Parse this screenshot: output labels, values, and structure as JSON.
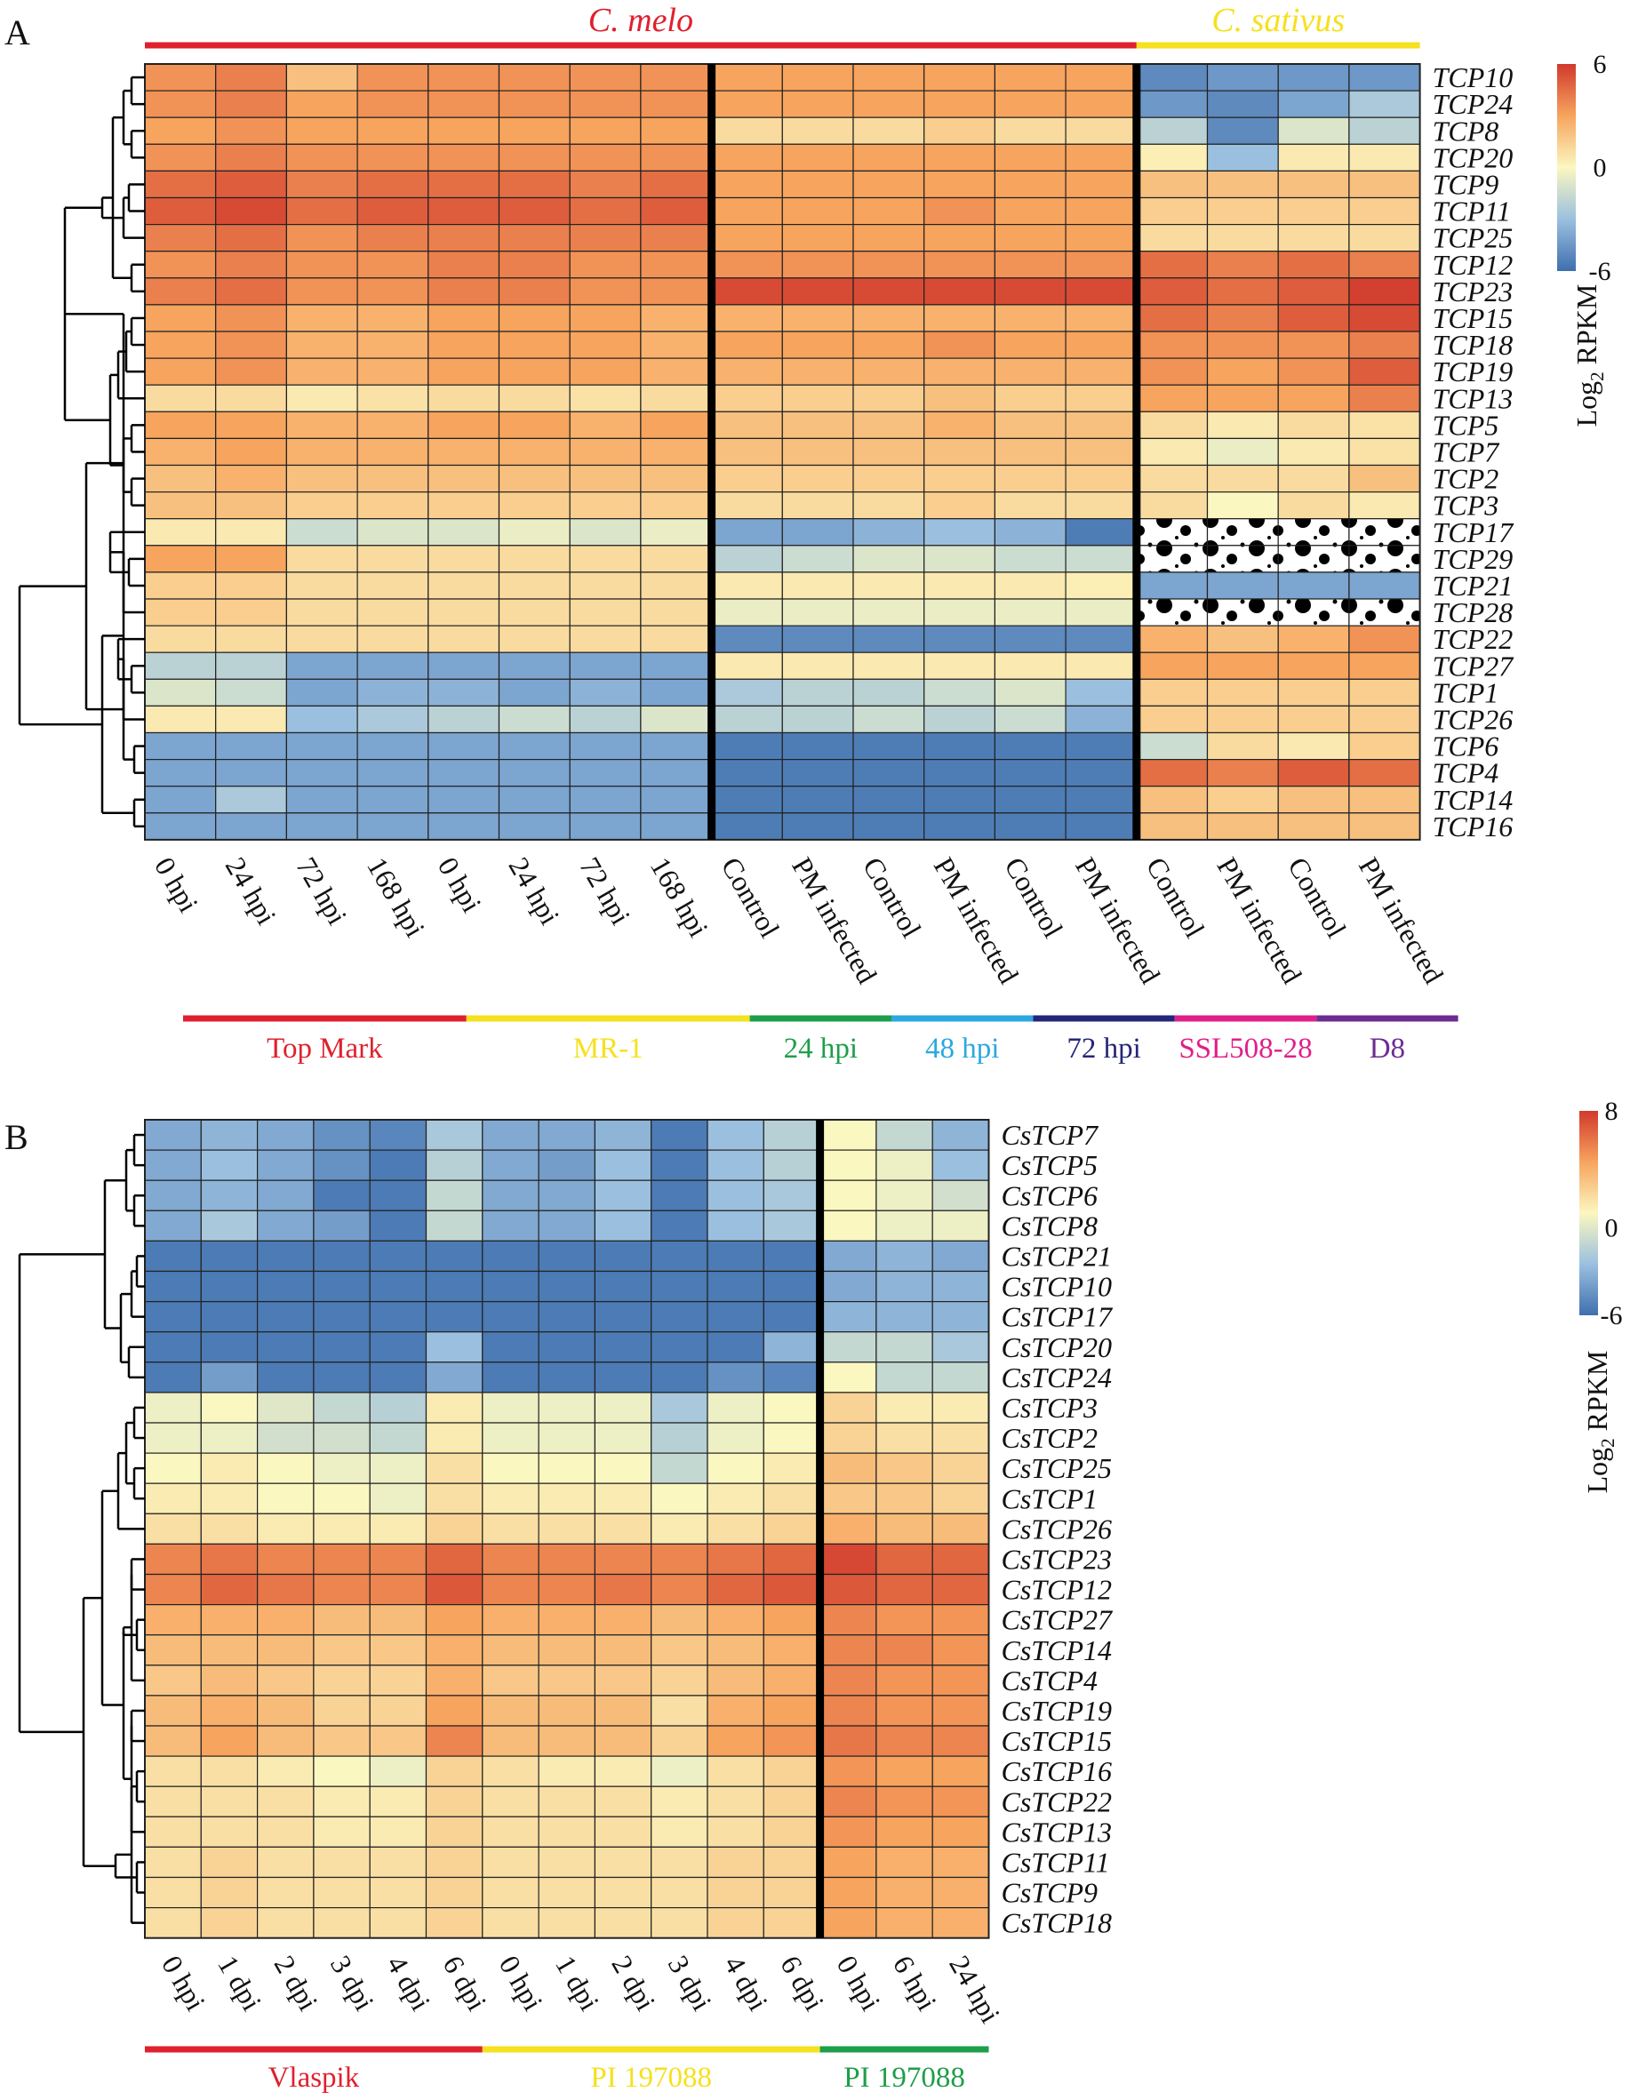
{
  "chart_data": [
    {
      "panel": "A",
      "type": "heatmap",
      "colorbar": {
        "title": "Log2 RPKM",
        "title_main": "Log",
        "title_sub": "2",
        "title_rest": " RPKM",
        "ticks": [
          "6",
          "0",
          "-6"
        ],
        "range": [
          -6,
          6
        ]
      },
      "species_labels": [
        {
          "text": "C. melo",
          "color": "#e0202e",
          "columns": [
            0,
            13
          ]
        },
        {
          "text": "C. sativus",
          "color": "#f5e11e",
          "columns": [
            14,
            17
          ]
        }
      ],
      "column_labels": [
        "0 hpi",
        "24 hpi",
        "72 hpi",
        "168 hpi",
        "0 hpi",
        "24 hpi",
        "72 hpi",
        "168 hpi",
        "Control",
        "PM infected",
        "Control",
        "PM infected",
        "Control",
        "PM infected",
        "Control",
        "PM infected",
        "Control",
        "PM infected"
      ],
      "column_groups": [
        {
          "label": "Top Mark",
          "color": "#e0202e",
          "columns": [
            0,
            3
          ]
        },
        {
          "label": "MR-1",
          "color": "#f5e11e",
          "columns": [
            4,
            7
          ]
        },
        {
          "label": "24 hpi",
          "color": "#1e9e4a",
          "columns": [
            8,
            9
          ]
        },
        {
          "label": "48 hpi",
          "color": "#2aa8e0",
          "columns": [
            10,
            11
          ]
        },
        {
          "label": "72 hpi",
          "color": "#24257a",
          "columns": [
            12,
            13
          ]
        },
        {
          "label": "SSL508-28",
          "color": "#e0208a",
          "columns": [
            14,
            15
          ]
        },
        {
          "label": "D8",
          "color": "#6c2c91",
          "columns": [
            16,
            17
          ]
        }
      ],
      "separators_after_column": [
        7,
        13
      ],
      "rows": [
        "TCP10",
        "TCP24",
        "TCP8",
        "TCP20",
        "TCP9",
        "TCP11",
        "TCP25",
        "TCP12",
        "TCP23",
        "TCP15",
        "TCP18",
        "TCP19",
        "TCP13",
        "TCP5",
        "TCP7",
        "TCP2",
        "TCP3",
        "TCP17",
        "TCP29",
        "TCP21",
        "TCP28",
        "TCP22",
        "TCP27",
        "TCP1",
        "TCP26",
        "TCP6",
        "TCP4",
        "TCP14",
        "TCP16"
      ],
      "values": [
        [
          3.5,
          4.0,
          2.0,
          3.5,
          3.5,
          3.5,
          3.5,
          3.5,
          3.0,
          3.0,
          3.0,
          3.0,
          3.0,
          3.0,
          -5.0,
          -4.5,
          -4.5,
          -4.5
        ],
        [
          3.5,
          4.0,
          3.0,
          3.5,
          3.5,
          3.5,
          3.5,
          3.5,
          3.0,
          3.0,
          3.0,
          3.0,
          3.0,
          3.0,
          -4.5,
          -5.0,
          -4.0,
          -2.5
        ],
        [
          3.0,
          3.5,
          3.0,
          3.0,
          3.0,
          3.0,
          3.0,
          3.0,
          1.0,
          1.0,
          1.0,
          1.5,
          1.0,
          1.0,
          -2.0,
          -5.0,
          -1.0,
          -2.0
        ],
        [
          3.5,
          4.0,
          3.5,
          3.5,
          3.5,
          3.5,
          3.5,
          3.5,
          3.0,
          3.0,
          3.0,
          3.0,
          3.0,
          3.0,
          0.3,
          -3.0,
          0.5,
          0.5
        ],
        [
          4.5,
          5.0,
          4.0,
          4.5,
          4.5,
          4.5,
          4.0,
          4.5,
          3.0,
          3.0,
          3.0,
          3.0,
          3.0,
          3.0,
          2.0,
          2.0,
          2.0,
          2.0
        ],
        [
          5.0,
          5.5,
          4.5,
          5.0,
          5.0,
          5.0,
          4.5,
          5.0,
          3.0,
          3.0,
          3.0,
          3.5,
          3.0,
          3.0,
          1.5,
          1.5,
          1.5,
          1.5
        ],
        [
          4.0,
          4.5,
          3.5,
          4.0,
          4.0,
          4.0,
          4.0,
          4.0,
          3.0,
          3.0,
          3.0,
          3.0,
          3.0,
          3.0,
          1.0,
          1.0,
          1.0,
          1.0
        ],
        [
          3.5,
          4.0,
          3.5,
          3.5,
          4.0,
          4.0,
          3.5,
          3.5,
          3.5,
          3.5,
          3.5,
          3.5,
          3.5,
          3.5,
          4.5,
          4.0,
          4.5,
          4.0
        ],
        [
          4.0,
          4.5,
          3.5,
          3.5,
          4.0,
          4.0,
          3.5,
          3.5,
          5.5,
          5.5,
          5.5,
          5.5,
          5.5,
          5.5,
          5.0,
          4.5,
          5.0,
          5.8
        ],
        [
          3.0,
          3.5,
          2.5,
          2.5,
          3.0,
          3.0,
          3.0,
          2.5,
          2.5,
          2.5,
          2.5,
          2.5,
          2.5,
          2.5,
          4.5,
          4.0,
          5.0,
          5.5
        ],
        [
          3.0,
          3.5,
          2.5,
          2.5,
          3.0,
          3.0,
          3.0,
          2.5,
          3.0,
          3.0,
          3.0,
          3.5,
          3.0,
          3.0,
          3.5,
          3.5,
          3.5,
          4.0
        ],
        [
          3.0,
          3.5,
          2.5,
          2.5,
          3.0,
          3.0,
          3.0,
          2.5,
          2.5,
          2.5,
          2.5,
          2.5,
          2.5,
          2.5,
          3.5,
          3.0,
          3.5,
          5.0
        ],
        [
          1.0,
          1.0,
          0.5,
          0.8,
          1.0,
          1.0,
          0.8,
          1.0,
          1.5,
          1.5,
          1.5,
          2.0,
          1.5,
          1.5,
          3.0,
          3.0,
          3.0,
          4.0
        ],
        [
          3.0,
          3.0,
          2.5,
          2.5,
          3.0,
          3.0,
          2.5,
          3.0,
          2.0,
          2.0,
          2.0,
          2.5,
          2.0,
          2.0,
          1.0,
          0.5,
          1.0,
          0.8
        ],
        [
          2.5,
          3.0,
          2.5,
          2.5,
          2.5,
          2.5,
          2.5,
          2.5,
          2.0,
          2.0,
          2.0,
          2.0,
          2.0,
          2.0,
          0.5,
          -0.5,
          0.5,
          0.8
        ],
        [
          2.0,
          2.5,
          2.0,
          2.0,
          2.0,
          2.0,
          2.0,
          2.0,
          1.5,
          1.5,
          1.5,
          1.5,
          1.5,
          1.5,
          1.0,
          1.0,
          1.0,
          2.0
        ],
        [
          2.0,
          2.0,
          1.5,
          1.5,
          1.5,
          1.5,
          1.5,
          1.5,
          1.0,
          1.0,
          1.0,
          1.5,
          1.0,
          1.0,
          1.0,
          0.0,
          1.0,
          0.5
        ],
        [
          0.5,
          0.5,
          -1.5,
          -1.0,
          -1.0,
          -0.5,
          -1.0,
          -0.5,
          -4.0,
          -4.0,
          -3.5,
          -3.0,
          -3.5,
          -5.5,
          null,
          null,
          null,
          null
        ],
        [
          3.0,
          3.0,
          1.0,
          1.0,
          1.0,
          1.0,
          1.0,
          1.0,
          -2.0,
          -1.5,
          -1.0,
          -1.0,
          -1.5,
          -1.5,
          null,
          null,
          null,
          null
        ],
        [
          1.5,
          1.5,
          1.0,
          1.0,
          1.0,
          1.0,
          1.0,
          1.0,
          0.5,
          0.5,
          0.5,
          0.5,
          0.5,
          0.3,
          -4.0,
          -4.0,
          -4.0,
          -4.0
        ],
        [
          1.5,
          1.5,
          1.0,
          1.0,
          1.0,
          1.0,
          1.0,
          1.0,
          -0.5,
          -0.5,
          -0.5,
          -0.5,
          -0.5,
          -0.5,
          null,
          null,
          null,
          null
        ],
        [
          1.0,
          1.0,
          1.0,
          1.0,
          1.0,
          1.0,
          1.0,
          1.0,
          -5.0,
          -5.0,
          -5.0,
          -5.0,
          -5.0,
          -5.0,
          2.5,
          2.0,
          2.5,
          3.5
        ],
        [
          -2.0,
          -2.0,
          -4.0,
          -4.0,
          -4.0,
          -4.0,
          -4.0,
          -4.0,
          0.5,
          0.5,
          0.5,
          0.5,
          0.5,
          0.5,
          3.0,
          3.0,
          3.0,
          3.0
        ],
        [
          -1.0,
          -1.5,
          -4.0,
          -3.5,
          -3.5,
          -4.0,
          -3.5,
          -4.0,
          -2.5,
          -2.0,
          -2.0,
          -1.5,
          -1.0,
          -3.0,
          1.5,
          1.5,
          1.5,
          1.5
        ],
        [
          0.5,
          0.5,
          -3.0,
          -2.5,
          -2.0,
          -1.5,
          -2.0,
          -1.0,
          -2.0,
          -2.0,
          -1.5,
          -2.0,
          -1.5,
          -3.5,
          1.5,
          1.5,
          1.5,
          1.5
        ],
        [
          -4.0,
          -4.0,
          -4.0,
          -4.0,
          -4.0,
          -4.0,
          -4.0,
          -4.0,
          -5.5,
          -5.5,
          -5.5,
          -5.5,
          -5.5,
          -5.5,
          -1.5,
          1.0,
          0.5,
          1.5
        ],
        [
          -4.0,
          -4.0,
          -4.0,
          -4.0,
          -4.0,
          -4.0,
          -4.0,
          -4.0,
          -5.5,
          -5.5,
          -5.5,
          -5.5,
          -5.5,
          -5.5,
          4.5,
          4.0,
          5.0,
          4.5
        ],
        [
          -4.0,
          -2.5,
          -4.0,
          -4.0,
          -4.0,
          -4.0,
          -4.0,
          -4.0,
          -5.5,
          -5.5,
          -5.5,
          -5.5,
          -5.5,
          -5.5,
          2.0,
          1.5,
          2.0,
          2.0
        ],
        [
          -4.0,
          -4.0,
          -4.0,
          -4.0,
          -4.0,
          -4.0,
          -4.0,
          -4.0,
          -5.5,
          -5.5,
          -5.5,
          -5.5,
          -5.5,
          -5.5,
          2.0,
          2.0,
          2.0,
          2.0
        ]
      ]
    },
    {
      "panel": "B",
      "type": "heatmap",
      "colorbar": {
        "title": "Log2 RPKM",
        "title_main": "Log",
        "title_sub": "2",
        "title_rest": " RPKM",
        "ticks": [
          "8",
          "0",
          "-6"
        ],
        "range": [
          -6,
          8
        ]
      },
      "column_labels": [
        "0 hpi",
        "1 dpi",
        "2 dpi",
        "3 dpi",
        "4 dpi",
        "6 dpi",
        "0 hpi",
        "1 dpi",
        "2 dpi",
        "3 dpi",
        "4 dpi",
        "6 dpi",
        "0 hpi",
        "6 hpi",
        "24 hpi"
      ],
      "column_groups": [
        {
          "label": "Vlaspik",
          "color": "#e0202e",
          "columns": [
            0,
            5
          ]
        },
        {
          "label": "PI 197088",
          "color": "#f5e11e",
          "columns": [
            6,
            11
          ]
        },
        {
          "label": "PI 197088",
          "color": "#1e9e4a",
          "columns": [
            12,
            14
          ]
        }
      ],
      "separators_after_column": [
        11
      ],
      "rows": [
        "CsTCP7",
        "CsTCP5",
        "CsTCP6",
        "CsTCP8",
        "CsTCP21",
        "CsTCP10",
        "CsTCP17",
        "CsTCP20",
        "CsTCP24",
        "CsTCP3",
        "CsTCP2",
        "CsTCP25",
        "CsTCP1",
        "CsTCP26",
        "CsTCP23",
        "CsTCP12",
        "CsTCP27",
        "CsTCP14",
        "CsTCP4",
        "CsTCP19",
        "CsTCP15",
        "CsTCP16",
        "CsTCP22",
        "CsTCP13",
        "CsTCP11",
        "CsTCP9",
        "CsTCP18"
      ],
      "values": [
        [
          -3.5,
          -3.0,
          -3.5,
          -4.5,
          -5.0,
          -2.0,
          -3.5,
          -3.5,
          -3.0,
          -5.5,
          -2.5,
          -1.5,
          1.0,
          -1.0,
          -3.0
        ],
        [
          -3.5,
          -2.5,
          -3.5,
          -4.5,
          -5.5,
          -1.5,
          -3.5,
          -4.0,
          -2.5,
          -5.5,
          -2.5,
          -1.5,
          1.0,
          0.5,
          -2.5
        ],
        [
          -3.5,
          -3.0,
          -3.5,
          -5.5,
          -5.5,
          -1.0,
          -3.5,
          -3.5,
          -2.5,
          -5.5,
          -2.5,
          -2.0,
          1.0,
          0.5,
          -0.5
        ],
        [
          -3.5,
          -2.0,
          -3.5,
          -4.0,
          -5.5,
          -1.0,
          -3.5,
          -3.5,
          -2.5,
          -5.5,
          -2.5,
          -2.0,
          1.0,
          0.5,
          0.5
        ],
        [
          -5.5,
          -5.5,
          -5.5,
          -5.5,
          -5.5,
          -5.5,
          -5.5,
          -5.5,
          -5.5,
          -5.5,
          -5.5,
          -5.5,
          -3.5,
          -3.0,
          -3.5
        ],
        [
          -5.5,
          -5.5,
          -5.5,
          -5.5,
          -5.5,
          -5.5,
          -5.5,
          -5.5,
          -5.5,
          -5.5,
          -5.5,
          -5.5,
          -3.5,
          -3.0,
          -3.0
        ],
        [
          -5.5,
          -5.5,
          -5.5,
          -5.5,
          -5.5,
          -5.5,
          -5.5,
          -5.5,
          -5.5,
          -5.5,
          -5.5,
          -5.5,
          -3.0,
          -3.0,
          -3.0
        ],
        [
          -5.5,
          -5.5,
          -5.5,
          -5.5,
          -5.5,
          -2.5,
          -5.5,
          -5.5,
          -5.5,
          -5.5,
          -5.5,
          -3.0,
          -1.0,
          -1.0,
          -2.0
        ],
        [
          -5.5,
          -4.0,
          -5.5,
          -5.5,
          -5.5,
          -3.5,
          -5.5,
          -5.5,
          -5.5,
          -5.5,
          -4.5,
          -5.0,
          1.0,
          -1.0,
          -1.0
        ],
        [
          0.5,
          1.0,
          0.0,
          -1.0,
          -1.5,
          1.5,
          0.5,
          0.5,
          0.5,
          -2.0,
          0.5,
          1.0,
          2.5,
          1.5,
          1.5
        ],
        [
          0.5,
          0.5,
          -0.5,
          -0.5,
          -1.0,
          1.5,
          0.5,
          0.5,
          0.5,
          -1.5,
          0.5,
          1.0,
          2.5,
          2.0,
          2.0
        ],
        [
          1.0,
          1.5,
          1.0,
          0.5,
          0.5,
          2.0,
          1.0,
          1.0,
          1.0,
          -1.0,
          1.0,
          1.5,
          3.5,
          3.0,
          2.5
        ],
        [
          1.5,
          1.5,
          1.0,
          1.0,
          0.5,
          2.0,
          1.5,
          1.5,
          1.5,
          1.0,
          1.5,
          2.0,
          3.0,
          3.0,
          2.5
        ],
        [
          2.0,
          2.0,
          1.5,
          1.5,
          1.5,
          2.5,
          2.0,
          2.0,
          2.0,
          1.5,
          2.0,
          2.5,
          4.0,
          3.5,
          3.5
        ],
        [
          5.5,
          6.0,
          5.5,
          5.5,
          5.5,
          6.5,
          5.5,
          5.5,
          5.5,
          5.5,
          6.0,
          6.5,
          7.5,
          6.5,
          6.5
        ],
        [
          5.5,
          6.5,
          6.0,
          5.5,
          5.5,
          7.0,
          5.5,
          5.5,
          6.0,
          5.5,
          6.5,
          7.0,
          7.0,
          6.5,
          6.5
        ],
        [
          4.0,
          4.0,
          4.0,
          3.5,
          3.5,
          4.5,
          4.0,
          4.0,
          4.0,
          3.5,
          4.0,
          4.5,
          5.5,
          5.0,
          5.0
        ],
        [
          3.5,
          3.5,
          3.5,
          3.0,
          3.0,
          4.0,
          3.5,
          3.5,
          3.5,
          3.0,
          3.5,
          4.0,
          5.5,
          5.5,
          5.0
        ],
        [
          3.0,
          3.5,
          3.0,
          2.5,
          2.5,
          4.0,
          3.0,
          3.0,
          3.0,
          2.5,
          3.5,
          4.0,
          5.5,
          5.0,
          5.0
        ],
        [
          3.5,
          4.0,
          3.5,
          2.5,
          2.5,
          4.5,
          3.5,
          3.5,
          3.5,
          2.0,
          4.0,
          4.5,
          5.5,
          5.0,
          5.0
        ],
        [
          3.5,
          4.5,
          3.5,
          3.0,
          3.0,
          5.5,
          3.5,
          3.5,
          3.5,
          2.5,
          4.5,
          5.0,
          6.0,
          5.5,
          5.5
        ],
        [
          2.0,
          2.0,
          1.5,
          1.0,
          0.5,
          2.5,
          2.0,
          1.5,
          1.5,
          0.5,
          2.0,
          2.5,
          5.0,
          4.5,
          4.5
        ],
        [
          2.0,
          2.0,
          2.0,
          1.5,
          1.5,
          2.5,
          2.0,
          2.0,
          2.0,
          1.5,
          2.0,
          2.5,
          5.5,
          5.0,
          5.0
        ],
        [
          2.0,
          2.0,
          2.0,
          1.5,
          1.5,
          2.5,
          2.0,
          2.0,
          2.0,
          1.5,
          2.0,
          2.5,
          5.0,
          4.5,
          4.5
        ],
        [
          2.0,
          2.5,
          2.0,
          2.0,
          2.0,
          2.5,
          2.0,
          2.0,
          2.0,
          2.0,
          2.5,
          2.5,
          4.5,
          4.0,
          4.0
        ],
        [
          2.0,
          2.5,
          2.0,
          2.0,
          2.0,
          2.5,
          2.0,
          2.0,
          2.0,
          2.0,
          2.5,
          2.5,
          4.5,
          4.0,
          4.0
        ],
        [
          2.0,
          2.5,
          2.0,
          2.0,
          2.0,
          2.5,
          2.0,
          2.0,
          2.0,
          2.0,
          2.5,
          2.5,
          4.5,
          4.0,
          4.0
        ]
      ]
    }
  ]
}
